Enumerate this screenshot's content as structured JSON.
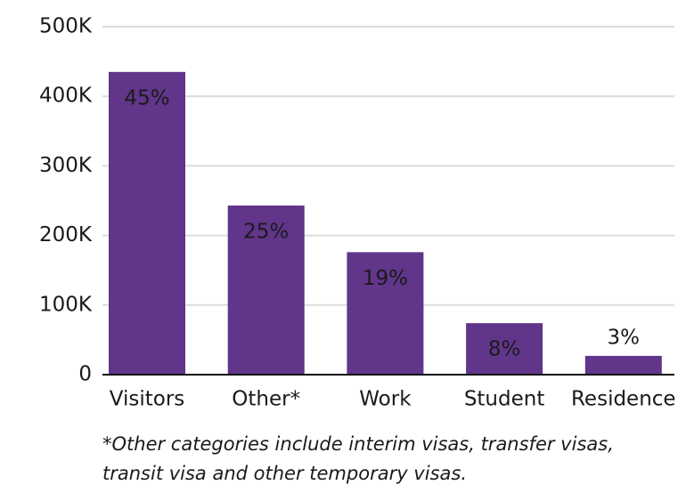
{
  "chart_data": {
    "type": "bar",
    "categories": [
      "Visitors",
      "Other*",
      "Work",
      "Student",
      "Residence"
    ],
    "values": [
      435000,
      243000,
      176000,
      74000,
      27000
    ],
    "percent_labels": [
      "45%",
      "25%",
      "19%",
      "8%",
      "3%"
    ],
    "color": "#61358a",
    "ylim": [
      0,
      500000
    ],
    "yticks": [
      0,
      {
        "value": 100000,
        "label": "100K"
      },
      {
        "value": 200000,
        "label": "200K"
      },
      {
        "value": 300000,
        "label": "300K"
      },
      {
        "value": 400000,
        "label": "400K"
      },
      {
        "value": 500000,
        "label": "500K"
      }
    ],
    "grid": true,
    "note": [
      "*Other categories include interim visas, transfer visas,",
      "transit visa and other temporary visas."
    ]
  }
}
